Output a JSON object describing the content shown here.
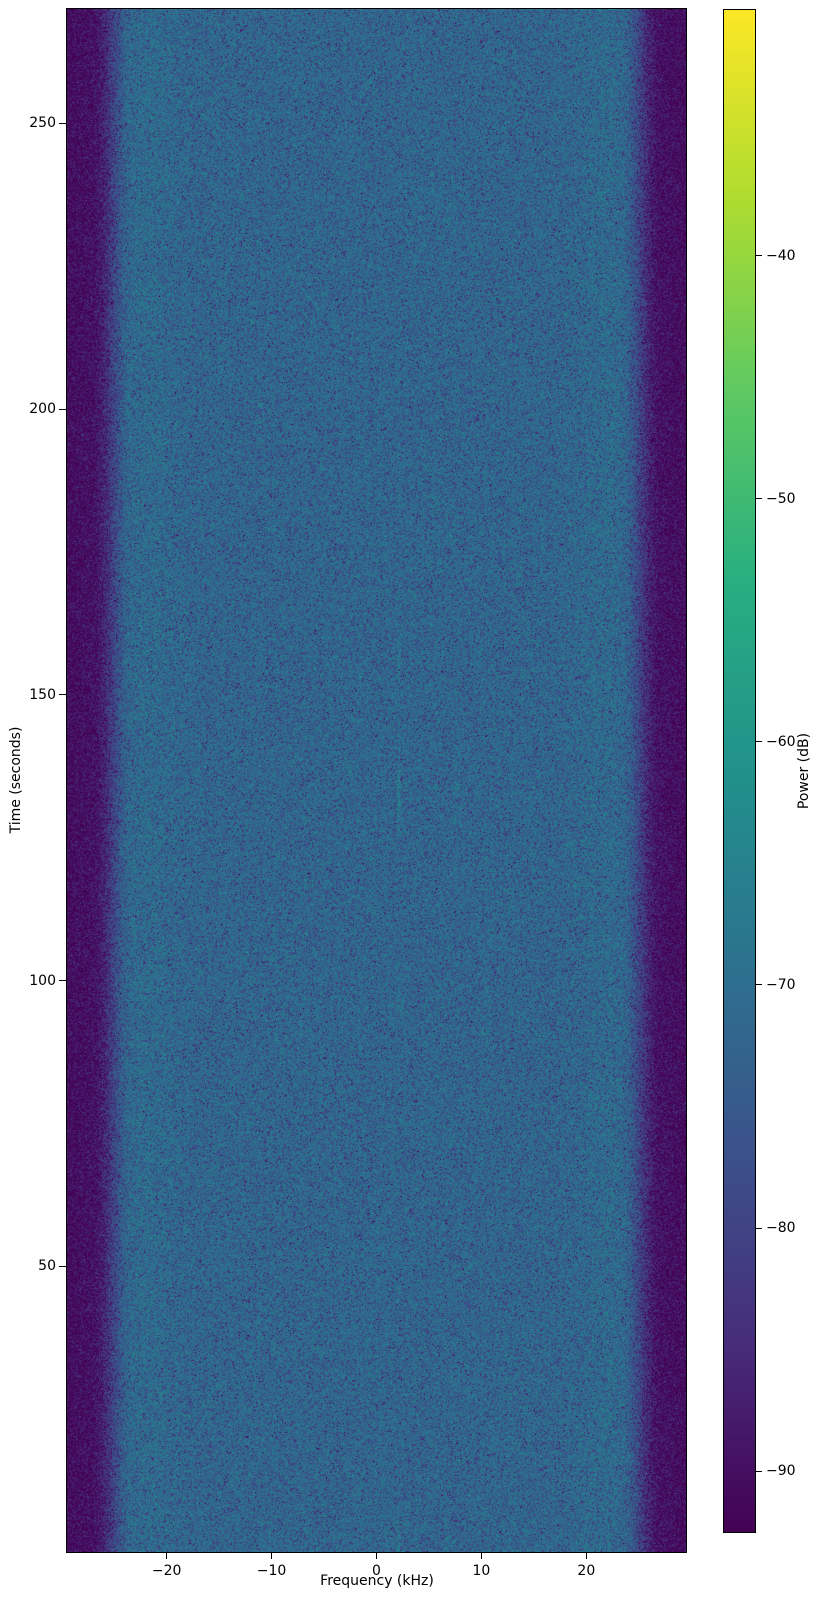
{
  "chart_data": {
    "type": "heatmap",
    "variant": "spectrogram_waterfall",
    "title": "",
    "xlabel": "Frequency (kHz)",
    "ylabel": "Time (seconds)",
    "xlim": [
      -29.5,
      29.5
    ],
    "ylim": [
      0,
      270
    ],
    "xticks": [
      -20,
      -10,
      0,
      10,
      20
    ],
    "xtick_labels": [
      "−20",
      "−10",
      "0",
      "10",
      "20"
    ],
    "yticks": [
      250,
      200,
      150,
      100,
      50
    ],
    "ytick_labels": [
      "250",
      "200",
      "150",
      "100",
      "50"
    ],
    "grid": false,
    "legend": false,
    "colorbar": {
      "label": "Power (dB)",
      "cmap": "viridis",
      "vmin": -92.5,
      "vmax": -29.9,
      "ticks": [
        -40,
        -50,
        -60,
        -70,
        -80,
        -90
      ],
      "tick_labels": [
        "−40",
        "−50",
        "−60",
        "−70",
        "−80",
        "−90"
      ],
      "cmap_anchors": [
        "#440154",
        "#472d7b",
        "#3b528b",
        "#2c728e",
        "#21918c",
        "#28ae80",
        "#5ec962",
        "#addc30",
        "#fde725"
      ]
    },
    "signal": {
      "description": "Wideband noise: flat in-band floor with steep rolloff at band edges and a faint intermittent tone near +2 kHz",
      "inband_power_db": -70,
      "outband_power_db": -88.5,
      "passband_edge_khz": 23.3,
      "stopband_edge_khz": 27.2,
      "edge_ripple_db": 1.1,
      "edge_ripple_center_khz": 21.6,
      "tone_freq_khz": 2.1,
      "tone_max_boost_db": 6
    }
  }
}
